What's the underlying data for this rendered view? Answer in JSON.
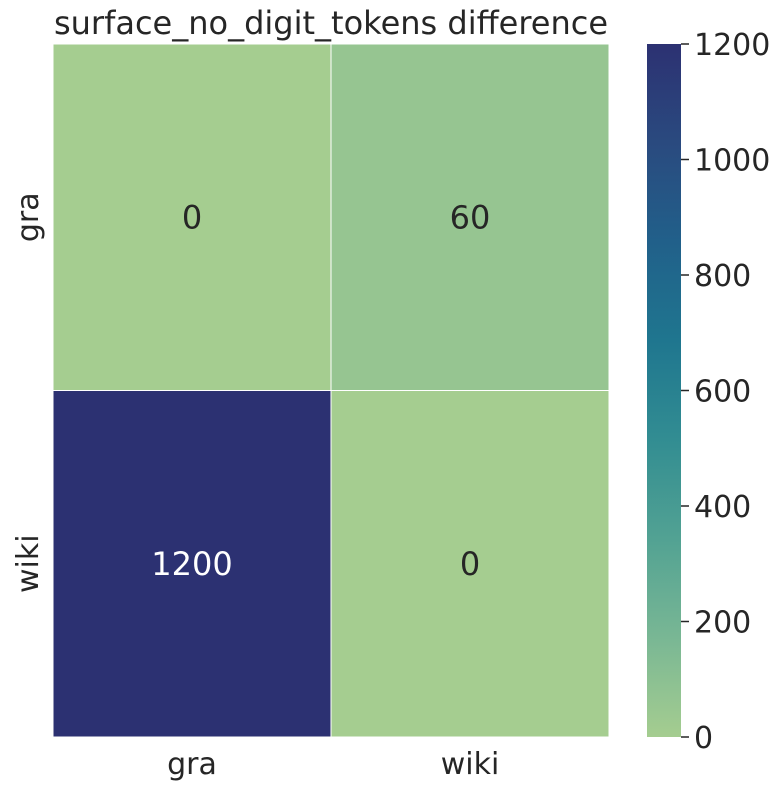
{
  "chart_data": {
    "type": "heatmap",
    "title": "surface_no_digit_tokens difference",
    "xlabel": "",
    "ylabel": "",
    "x_categories": [
      "gra",
      "wiki"
    ],
    "y_categories": [
      "gra",
      "wiki"
    ],
    "values": [
      [
        0,
        60
      ],
      [
        1200,
        0
      ]
    ],
    "cell_labels": [
      [
        "0",
        "60"
      ],
      [
        "1200",
        "0"
      ]
    ],
    "colorbar": {
      "min": 0,
      "max": 1200,
      "ticks": [
        0,
        200,
        400,
        600,
        800,
        1000,
        1200
      ],
      "tick_labels": [
        "0",
        "200",
        "400",
        "600",
        "800",
        "1000",
        "1200"
      ],
      "colormap": "crest",
      "stops": [
        "#a5cd90",
        "#79b794",
        "#52a293",
        "#328d92",
        "#1f768f",
        "#21608a",
        "#2a4a7f",
        "#2c3172"
      ]
    },
    "grid": false,
    "legend": "colorbar-right"
  }
}
